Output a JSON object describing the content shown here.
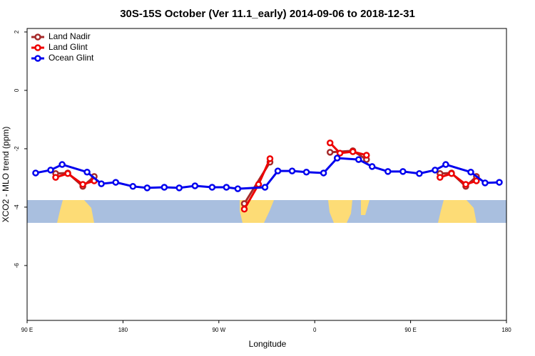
{
  "chart_data": {
    "type": "line",
    "title": "30S-15S October (Ver 11.1_early)   2014-09-06 to 2018-12-31",
    "x_label": "Longitude",
    "y_label": "XCO2 - MLO trend (ppm)",
    "xlim": [
      90,
      540
    ],
    "xticks": [
      {
        "value": 90,
        "label": "90 E"
      },
      {
        "value": 180,
        "label": "180"
      },
      {
        "value": 270,
        "label": "90 W"
      },
      {
        "value": 360,
        "label": "0"
      },
      {
        "value": 450,
        "label": "90 E"
      },
      {
        "value": 540,
        "label": "180"
      }
    ],
    "ylim": [
      -7.88,
      2.12
    ],
    "yticks": [
      2,
      0,
      -2,
      -4,
      -6
    ],
    "legend": "top-left",
    "series": [
      {
        "name": "Land Nadir",
        "color": "#a52a2a",
        "x": [
          116.8,
          128.2,
          142.3,
          153.0,
          null,
          293.9,
          318.0,
          null,
          374.4,
          395.8,
          408.6,
          null,
          477.6,
          488.4,
          501.8,
          511.8
        ],
        "values": [
          -2.85,
          -2.83,
          -3.29,
          -2.95,
          null,
          -3.88,
          -2.46,
          null,
          -2.12,
          -2.07,
          -2.37,
          null,
          -2.85,
          -2.83,
          -3.29,
          -2.95
        ]
      },
      {
        "name": "Land Glint",
        "color": "#ee0000",
        "x": [
          116.8,
          128.2,
          142.3,
          153.0,
          null,
          293.9,
          307.3,
          318.0,
          null,
          374.4,
          383.7,
          395.8,
          408.6,
          null,
          477.6,
          488.4,
          501.8,
          511.8
        ],
        "values": [
          -2.98,
          -2.85,
          -3.22,
          -3.1,
          null,
          -4.07,
          -3.22,
          -2.34,
          null,
          -1.8,
          -2.15,
          -2.1,
          -2.22,
          null,
          -2.98,
          -2.85,
          -3.22,
          -3.1
        ]
      },
      {
        "name": "Ocean Glint",
        "color": "#0000ee",
        "x": [
          98.0,
          112.1,
          122.9,
          146.3,
          159.7,
          173.2,
          189.3,
          202.7,
          218.8,
          232.8,
          247.6,
          263.7,
          277.1,
          287.8,
          313.3,
          325.4,
          338.8,
          352.2,
          368.3,
          381.1,
          401.2,
          413.9,
          428.7,
          442.8,
          458.2,
          473.0,
          483.0,
          506.5,
          519.9,
          533.3
        ],
        "values": [
          -2.83,
          -2.73,
          -2.54,
          -2.8,
          -3.2,
          -3.15,
          -3.29,
          -3.34,
          -3.32,
          -3.34,
          -3.27,
          -3.32,
          -3.32,
          -3.37,
          -3.32,
          -2.76,
          -2.76,
          -2.8,
          -2.83,
          -2.32,
          -2.37,
          -2.61,
          -2.78,
          -2.78,
          -2.85,
          -2.73,
          -2.54,
          -2.8,
          -3.17,
          -3.15
        ]
      }
    ]
  }
}
